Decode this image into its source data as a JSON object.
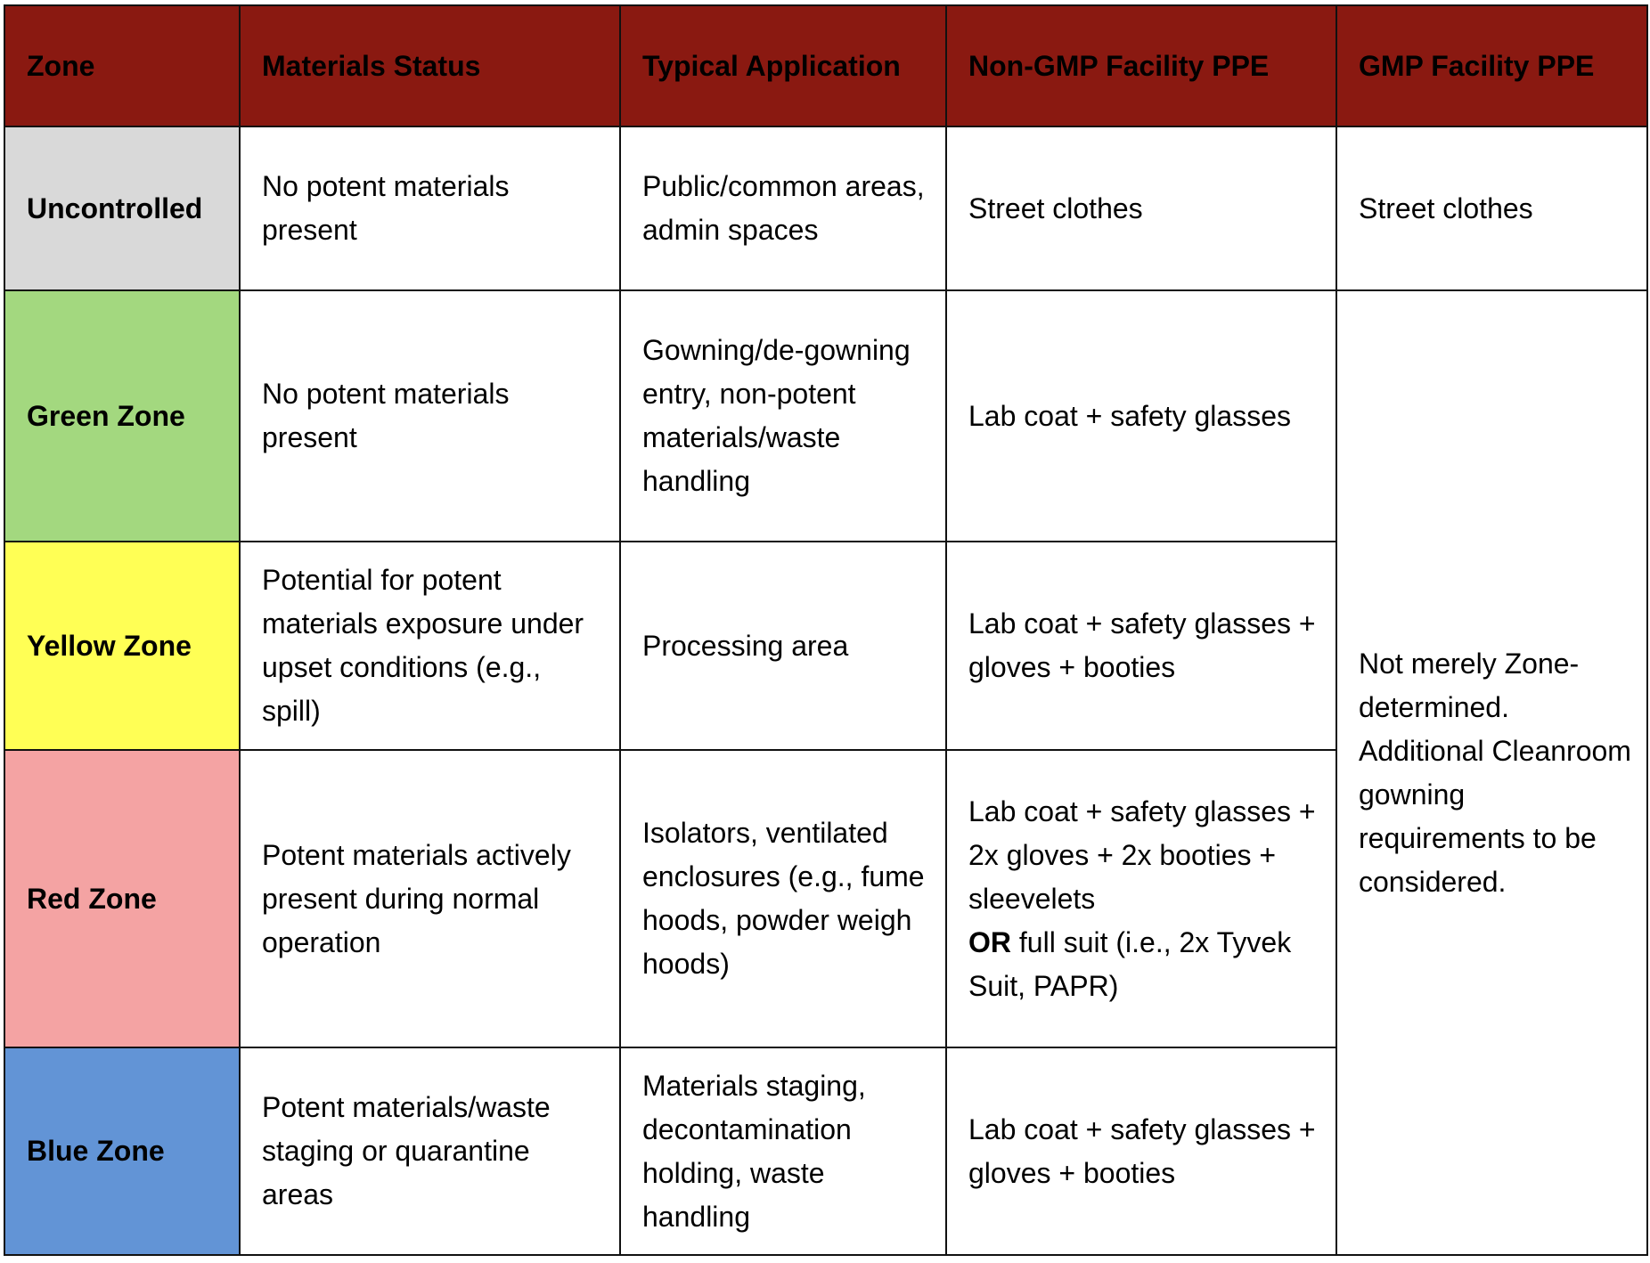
{
  "header": [
    "Zone",
    "Materials Status",
    "Typical Application",
    "Non-GMP Facility PPE",
    "GMP Facility PPE"
  ],
  "rows": [
    [
      "Uncontrolled",
      "No potent materials present",
      "Public/common areas, admin spaces",
      "Street clothes"
    ],
    [
      "Green Zone",
      "No potent materials present",
      "Gowning/de-gowning entry, non-potent materials/waste handling",
      "Lab coat + safety glasses"
    ],
    [
      "Yellow Zone",
      "Potential for potent materials exposure under upset conditions (e.g., spill)",
      "Processing area",
      "Lab coat + safety glasses + gloves + booties"
    ],
    [
      "Red Zone",
      "Potent materials actively present during normal operation",
      "Isolators, ventilated enclosures (e.g., fume hoods, powder weigh hoods)",
      [
        {
          "text": "Lab coat + safety glasses + 2x gloves + 2x booties + sleevelets",
          "bold": false
        },
        {
          "text": "OR",
          "bold": true
        },
        {
          "text": "full suit (i.e., 2x Tyvek Suit, PAPR)",
          "bold": false
        }
      ]
    ],
    [
      "Blue Zone",
      "Potent materials/waste staging or quarantine areas",
      "Materials staging, decontamination holding, waste handling",
      "Lab coat + safety glasses + gloves + booties"
    ]
  ],
  "zone_colors": [
    "#d9d9d9",
    "#a3d87f",
    "#ffff55",
    "#f4a3a3",
    "#6294d6"
  ],
  "gmp": [
    "Street clothes",
    "Not merely Zone-determined. Additional Cleanroom gowning requirements to be considered."
  ]
}
